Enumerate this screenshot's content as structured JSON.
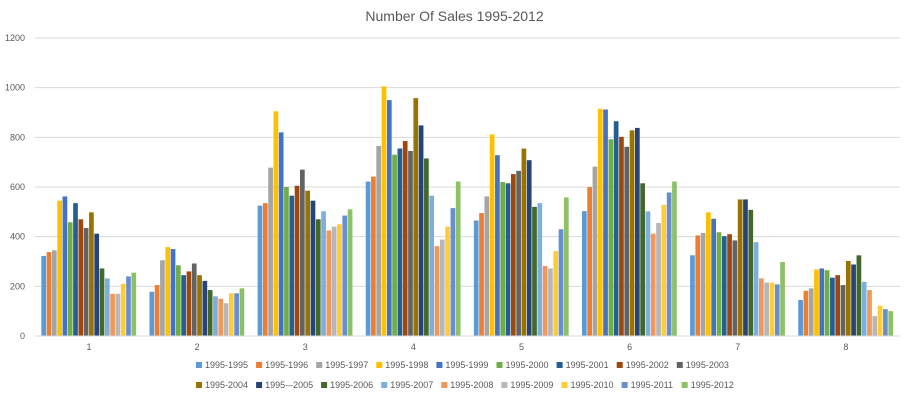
{
  "chart_data": {
    "type": "bar",
    "title": "Number Of Sales 1995-2012",
    "xlabel": "",
    "ylabel": "",
    "ylim": [
      0,
      1200
    ],
    "yticks": [
      0,
      200,
      400,
      600,
      800,
      1000,
      1200
    ],
    "grid": true,
    "legend_position": "bottom",
    "categories": [
      "1",
      "2",
      "3",
      "4",
      "5",
      "6",
      "7",
      "8"
    ],
    "series": [
      {
        "name": "1995-1995",
        "color": "#5b9bd5",
        "values": [
          322,
          178,
          525,
          622,
          465,
          503,
          325,
          145
        ]
      },
      {
        "name": "1995-1996",
        "color": "#ed7d31",
        "values": [
          338,
          205,
          535,
          642,
          495,
          600,
          405,
          182
        ]
      },
      {
        "name": "1995-1997",
        "color": "#a5a5a5",
        "values": [
          345,
          305,
          678,
          765,
          562,
          682,
          415,
          192
        ]
      },
      {
        "name": "1995-1998",
        "color": "#ffc000",
        "values": [
          545,
          358,
          905,
          1005,
          812,
          915,
          498,
          268
        ]
      },
      {
        "name": "1995-1999",
        "color": "#4472c4",
        "values": [
          562,
          350,
          820,
          950,
          728,
          912,
          472,
          272
        ]
      },
      {
        "name": "1995-2000",
        "color": "#70ad47",
        "values": [
          458,
          285,
          600,
          730,
          620,
          792,
          418,
          265
        ]
      },
      {
        "name": "1995-2001",
        "color": "#255e91",
        "values": [
          535,
          245,
          565,
          755,
          615,
          865,
          402,
          235
        ]
      },
      {
        "name": "1995-2002",
        "color": "#9e480e",
        "values": [
          470,
          260,
          605,
          785,
          652,
          802,
          410,
          245
        ]
      },
      {
        "name": "1995-2003",
        "color": "#636363",
        "values": [
          435,
          292,
          670,
          745,
          665,
          762,
          385,
          205
        ]
      },
      {
        "name": "1995-2004",
        "color": "#997300",
        "values": [
          498,
          245,
          585,
          958,
          755,
          828,
          550,
          302
        ]
      },
      {
        "name": "1995-–2005",
        "color": "#264478",
        "values": [
          412,
          222,
          545,
          848,
          708,
          838,
          550,
          288
        ]
      },
      {
        "name": "1995-2006",
        "color": "#43682b",
        "values": [
          272,
          185,
          470,
          715,
          520,
          615,
          508,
          325
        ]
      },
      {
        "name": "1995-2007",
        "color": "#7cafdd",
        "values": [
          232,
          160,
          502,
          565,
          535,
          502,
          378,
          218
        ]
      },
      {
        "name": "1995-2008",
        "color": "#f1975a",
        "values": [
          170,
          150,
          425,
          362,
          282,
          412,
          232,
          185
        ]
      },
      {
        "name": "1995-2009",
        "color": "#b7b7b7",
        "values": [
          170,
          132,
          440,
          388,
          272,
          455,
          215,
          80
        ]
      },
      {
        "name": "1995-2010",
        "color": "#ffcd33",
        "values": [
          210,
          172,
          450,
          440,
          342,
          528,
          215,
          122
        ]
      },
      {
        "name": "1995-2011",
        "color": "#698ed0",
        "values": [
          240,
          172,
          485,
          515,
          430,
          578,
          208,
          108
        ]
      },
      {
        "name": "1995-2012",
        "color": "#8cc168",
        "values": [
          255,
          192,
          510,
          622,
          558,
          622,
          298,
          100
        ]
      }
    ]
  }
}
